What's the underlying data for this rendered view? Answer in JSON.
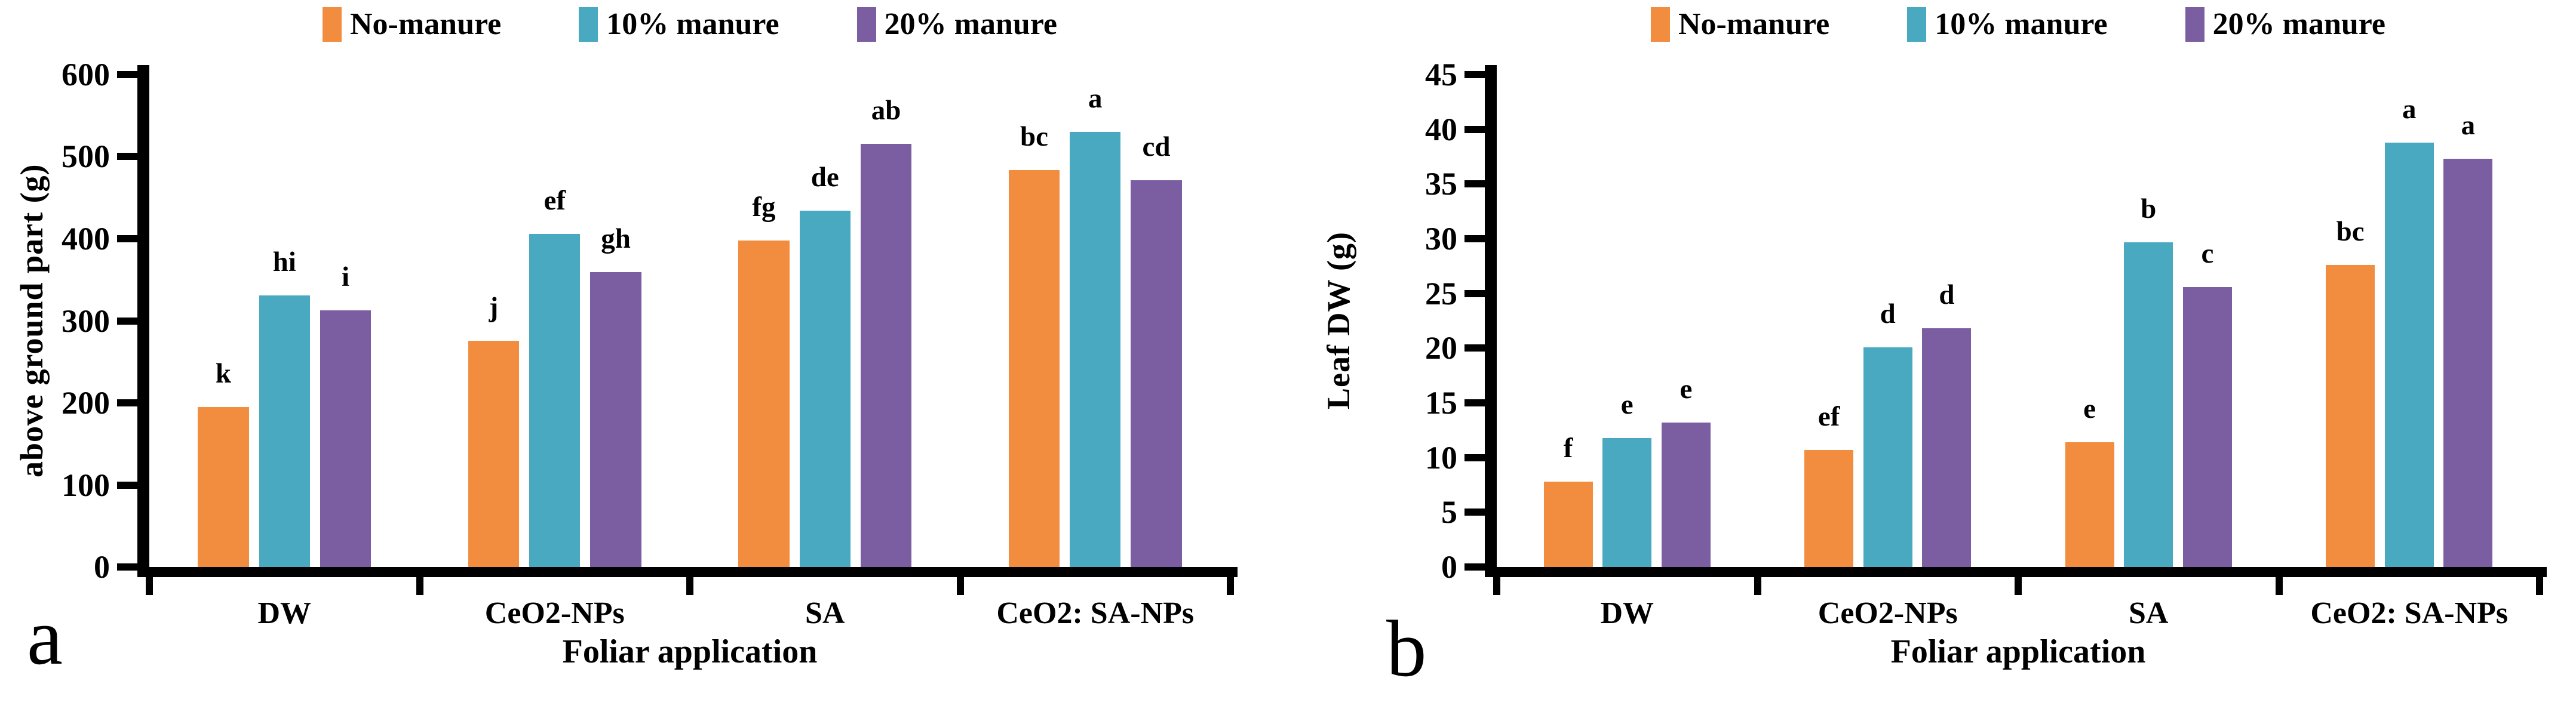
{
  "palette": {
    "orange": "#F28C3F",
    "teal": "#48A9C1",
    "purple": "#7B5EA1",
    "axis": "#000000",
    "text": "#000000",
    "background": "#FFFFFF"
  },
  "chart_data": [
    {
      "type": "bar",
      "panel_letter": "a",
      "ylabel": "above ground part (g)",
      "xlabel": "Foliar application",
      "ylim": [
        0,
        600
      ],
      "ytick_step": 100,
      "yticks": [
        0,
        100,
        200,
        300,
        400,
        500,
        600
      ],
      "categories": [
        "DW",
        "CeO2-NPs",
        "SA",
        "CeO2: SA-NPs"
      ],
      "grid": false,
      "legend_position": "top",
      "series": [
        {
          "name": "No-manure",
          "color_key": "orange",
          "values": [
            195,
            276,
            398,
            484
          ],
          "letters": [
            "k",
            "j",
            "fg",
            "bc"
          ]
        },
        {
          "name": "10% manure",
          "color_key": "teal",
          "values": [
            331,
            406,
            434,
            530
          ],
          "letters": [
            "hi",
            "ef",
            "de",
            "a"
          ]
        },
        {
          "name": "20% manure",
          "color_key": "purple",
          "values": [
            313,
            359,
            516,
            471
          ],
          "letters": [
            "i",
            "gh",
            "ab",
            "cd"
          ]
        }
      ]
    },
    {
      "type": "bar",
      "panel_letter": "b",
      "ylabel": "Leaf DW (g)",
      "xlabel": "Foliar application",
      "ylim": [
        0,
        45
      ],
      "ytick_step": 5,
      "yticks": [
        0,
        5,
        10,
        15,
        20,
        25,
        30,
        35,
        40,
        45
      ],
      "categories": [
        "DW",
        "CeO2-NPs",
        "SA",
        "CeO2: SA-NPs"
      ],
      "grid": false,
      "legend_position": "top",
      "series": [
        {
          "name": "No-manure",
          "color_key": "orange",
          "values": [
            7.8,
            10.7,
            11.4,
            27.6
          ],
          "letters": [
            "f",
            "ef",
            "e",
            "bc"
          ]
        },
        {
          "name": "10% manure",
          "color_key": "teal",
          "values": [
            11.8,
            20.1,
            29.7,
            38.8
          ],
          "letters": [
            "e",
            "d",
            "b",
            "a"
          ]
        },
        {
          "name": "20% manure",
          "color_key": "purple",
          "values": [
            13.2,
            21.8,
            25.6,
            37.3
          ],
          "letters": [
            "e",
            "d",
            "c",
            "a"
          ]
        }
      ]
    }
  ]
}
